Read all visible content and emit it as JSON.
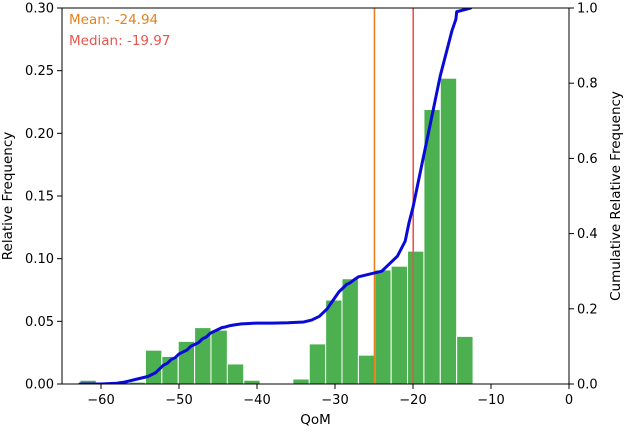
{
  "chart_data": {
    "type": "bar",
    "xlabel": "QoM",
    "ylabel": "Relative Frequency",
    "y2label": "Cumulative Relative Frequency",
    "xlim": [
      -65,
      0
    ],
    "ylim": [
      0,
      0.3
    ],
    "y2lim": [
      0,
      1.0
    ],
    "x_ticks": [
      -60,
      -50,
      -40,
      -30,
      -20,
      -10,
      0
    ],
    "y_ticks": [
      0.0,
      0.05,
      0.1,
      0.15,
      0.2,
      0.25,
      0.3
    ],
    "y2_ticks": [
      0.0,
      0.2,
      0.4,
      0.6,
      0.8,
      1.0
    ],
    "grid": false,
    "histogram": {
      "bin_width": 2.1,
      "bins": [
        {
          "x0": -62.7,
          "value": 0.003
        },
        {
          "x0": -60.6,
          "value": 0.0015
        },
        {
          "x0": -58.5,
          "value": 0.0015
        },
        {
          "x0": -56.4,
          "value": 0.0015
        },
        {
          "x0": -54.3,
          "value": 0.027
        },
        {
          "x0": -52.2,
          "value": 0.022
        },
        {
          "x0": -50.1,
          "value": 0.034
        },
        {
          "x0": -48.0,
          "value": 0.045
        },
        {
          "x0": -45.9,
          "value": 0.043
        },
        {
          "x0": -43.8,
          "value": 0.016
        },
        {
          "x0": -41.7,
          "value": 0.003
        },
        {
          "x0": -39.6,
          "value": 0.0
        },
        {
          "x0": -37.5,
          "value": 0.0
        },
        {
          "x0": -35.4,
          "value": 0.004
        },
        {
          "x0": -33.3,
          "value": 0.032
        },
        {
          "x0": -31.2,
          "value": 0.067
        },
        {
          "x0": -29.1,
          "value": 0.084
        },
        {
          "x0": -27.0,
          "value": 0.023
        },
        {
          "x0": -24.9,
          "value": 0.091
        },
        {
          "x0": -22.8,
          "value": 0.094
        },
        {
          "x0": -20.7,
          "value": 0.106
        },
        {
          "x0": -18.6,
          "value": 0.219
        },
        {
          "x0": -16.5,
          "value": 0.244
        },
        {
          "x0": -14.4,
          "value": 0.038
        }
      ]
    },
    "cumulative": {
      "x": [
        -62.7,
        -60,
        -58,
        -57,
        -56,
        -55,
        -54,
        -53,
        -52.5,
        -52,
        -51.5,
        -51,
        -50.5,
        -50,
        -49.5,
        -49,
        -48.5,
        -48,
        -47.5,
        -47,
        -46.5,
        -46,
        -45.5,
        -45,
        -44.5,
        -44,
        -43.5,
        -43,
        -42,
        -41,
        -40,
        -38,
        -36,
        -34,
        -33,
        -32.5,
        -32,
        -31.5,
        -31,
        -30.5,
        -30,
        -29.5,
        -29,
        -28.5,
        -28,
        -27.5,
        -27,
        -26,
        -25,
        -24,
        -23.5,
        -23,
        -22.5,
        -22,
        -21.5,
        -21,
        -20.8,
        -20.5,
        -20,
        -19.5,
        -19,
        -18.5,
        -18,
        -17.5,
        -17,
        -16.5,
        -16,
        -15.5,
        -15,
        -14.5,
        -14.4,
        -12.6
      ],
      "y": [
        0.0,
        0.0,
        0.002,
        0.005,
        0.01,
        0.015,
        0.02,
        0.03,
        0.04,
        0.05,
        0.055,
        0.065,
        0.07,
        0.08,
        0.085,
        0.09,
        0.1,
        0.105,
        0.11,
        0.12,
        0.125,
        0.135,
        0.14,
        0.145,
        0.15,
        0.152,
        0.155,
        0.157,
        0.16,
        0.161,
        0.162,
        0.162,
        0.163,
        0.165,
        0.17,
        0.175,
        0.18,
        0.19,
        0.2,
        0.215,
        0.23,
        0.245,
        0.255,
        0.265,
        0.27,
        0.278,
        0.285,
        0.29,
        0.295,
        0.3,
        0.31,
        0.32,
        0.33,
        0.34,
        0.36,
        0.38,
        0.4,
        0.43,
        0.47,
        0.52,
        0.57,
        0.62,
        0.67,
        0.72,
        0.77,
        0.82,
        0.86,
        0.9,
        0.94,
        0.97,
        0.99,
        1.0
      ]
    },
    "vlines": [
      {
        "name": "Mean",
        "x": -24.94,
        "label": "Mean: -24.94",
        "color": "#e6821e"
      },
      {
        "name": "Median",
        "x": -19.97,
        "label": "Median: -19.97",
        "color": "#e8554e"
      }
    ],
    "colors": {
      "bar_fill": "#4caf50",
      "bar_edge": "#ffffff",
      "cumulative": "#0a0ad8",
      "axis": "#000000"
    }
  }
}
